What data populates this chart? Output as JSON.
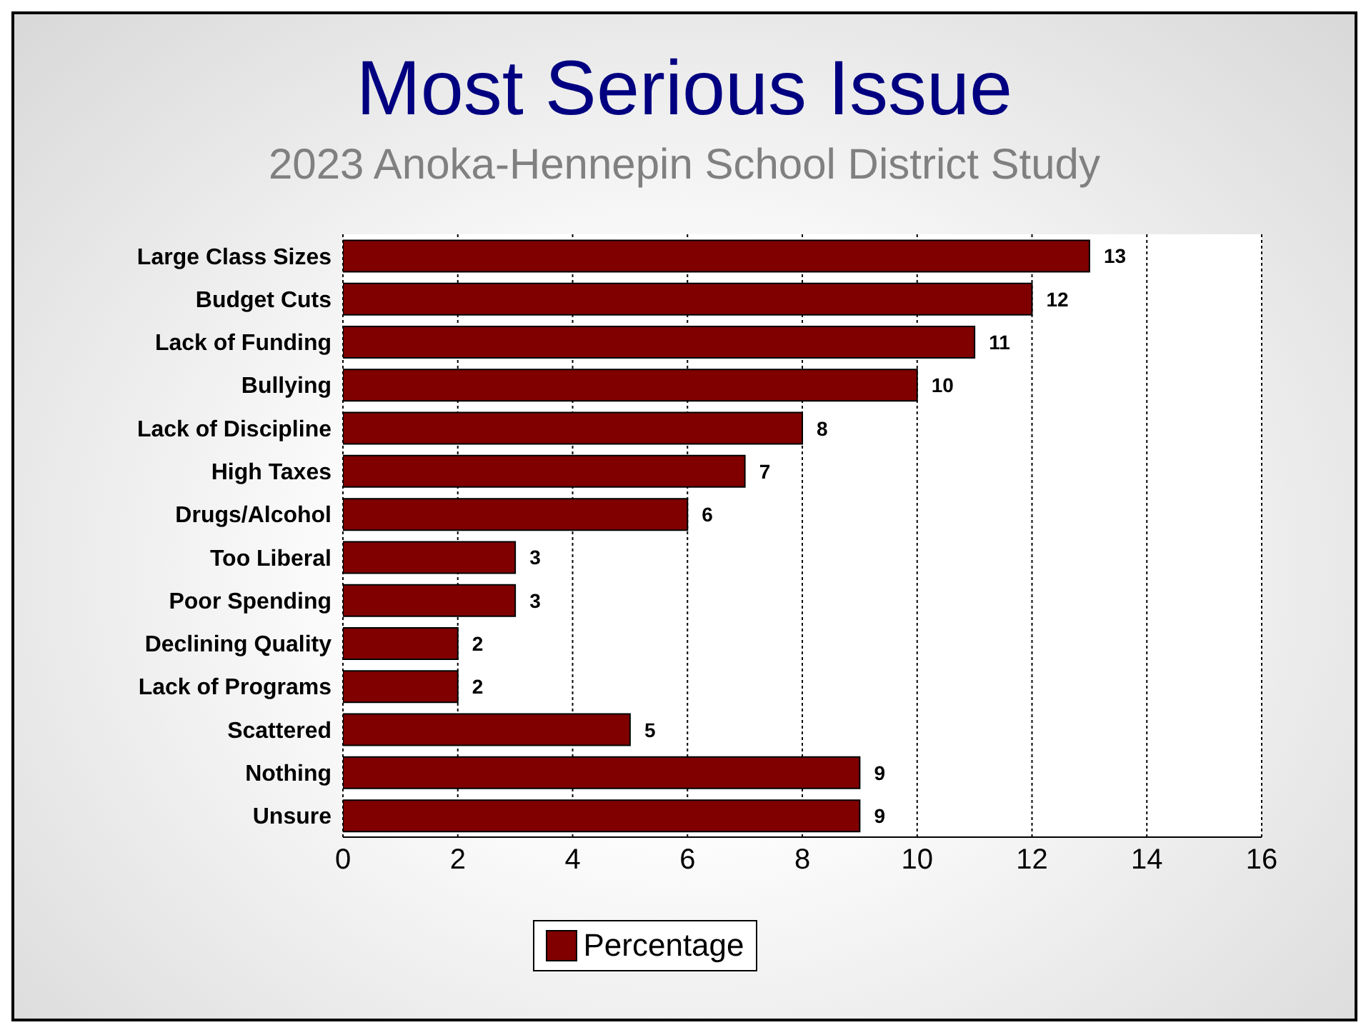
{
  "chart_data": {
    "type": "bar",
    "orientation": "horizontal",
    "title": "Most Serious Issue",
    "subtitle": "2023 Anoka-Hennepin School District Study",
    "categories": [
      "Large Class Sizes",
      "Budget Cuts",
      "Lack of Funding",
      "Bullying",
      "Lack of Discipline",
      "High Taxes",
      "Drugs/Alcohol",
      "Too Liberal",
      "Poor Spending",
      "Declining Quality",
      "Lack of Programs",
      "Scattered",
      "Nothing",
      "Unsure"
    ],
    "series": [
      {
        "name": "Percentage",
        "color": "#800000",
        "values": [
          13,
          12,
          11,
          10,
          8,
          7,
          6,
          3,
          3,
          2,
          2,
          5,
          9,
          9
        ]
      }
    ],
    "xlim": [
      0,
      16
    ],
    "xticks": [
      0,
      2,
      4,
      6,
      8,
      10,
      12,
      14,
      16
    ],
    "grid": "x",
    "legend": "bottom",
    "data_labels": true
  }
}
